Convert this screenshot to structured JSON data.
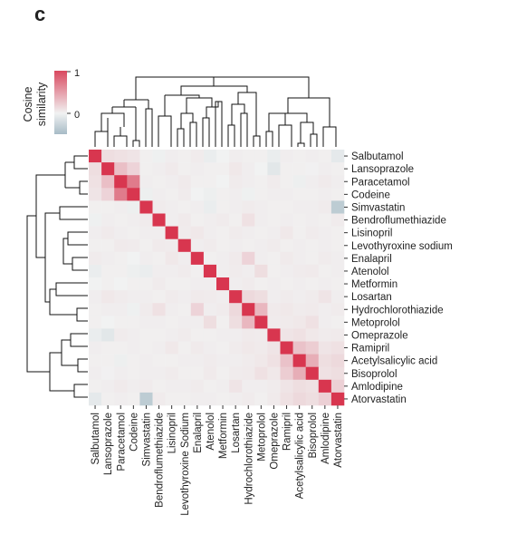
{
  "panel_label": "c",
  "colors": {
    "high": "#d9485f",
    "zero": "#f1f2f2",
    "low": "#a7bbc6",
    "diagonal": "#d8364f"
  },
  "chart_data": {
    "type": "heatmap",
    "title": "",
    "colorbar": {
      "label_line1": "Cosine",
      "label_line2": "similarity",
      "max_label": "1",
      "zero_label": "0",
      "range": [
        -0.5,
        1
      ]
    },
    "row_dendrogram": true,
    "col_dendrogram": true,
    "labels": [
      "Salbutamol",
      "Lansoprazole",
      "Paracetamol",
      "Codeine",
      "Simvastatin",
      "Bendroflumethiazide",
      "Lisinopril",
      "Levothyroxine sodium",
      "Enalapril",
      "Atenolol",
      "Metformin",
      "Losartan",
      "Hydrochlorothiazide",
      "Metoprolol",
      "Omeprazole",
      "Ramipril",
      "Acetylsalicylic acid",
      "Bisoprolol",
      "Amlodipine",
      "Atorvastatin"
    ],
    "col_labels": [
      "Salbutamol",
      "Lansoprazole",
      "Paracetamol",
      "Codeine",
      "Simvastatin",
      "Bendroflumethiazide",
      "Lisinopril",
      "Levothyroxine Sodium",
      "Enalapril",
      "Atenolol",
      "Metformin",
      "Losartan",
      "Hydrochlorothiazide",
      "Metoprolol",
      "Omeprazole",
      "Ramipril",
      "Acetylsalicylic acid",
      "Bisoprolol",
      "Amlodipine",
      "Atorvastatin"
    ],
    "matrix": [
      [
        1.0,
        0.12,
        0.1,
        0.08,
        0.02,
        -0.02,
        0.03,
        0.02,
        0.04,
        -0.05,
        0.0,
        0.03,
        0.02,
        0.02,
        -0.05,
        0.03,
        0.02,
        0.03,
        0.02,
        -0.08
      ],
      [
        0.12,
        1.0,
        0.3,
        0.18,
        0.02,
        0.03,
        0.05,
        0.02,
        0.03,
        0.02,
        0.02,
        0.06,
        0.03,
        0.0,
        -0.1,
        0.02,
        0.02,
        0.01,
        0.03,
        0.02
      ],
      [
        0.1,
        0.3,
        1.0,
        0.7,
        0.03,
        0.02,
        0.03,
        0.05,
        0.02,
        0.02,
        0.0,
        0.04,
        0.03,
        0.02,
        0.04,
        0.02,
        -0.03,
        0.03,
        0.05,
        0.03
      ],
      [
        0.08,
        0.18,
        0.7,
        1.0,
        -0.03,
        0.03,
        0.02,
        0.04,
        0.0,
        -0.03,
        0.02,
        0.03,
        -0.02,
        0.02,
        0.03,
        0.03,
        0.02,
        0.02,
        0.03,
        0.02
      ],
      [
        0.02,
        0.02,
        0.03,
        -0.03,
        1.0,
        0.04,
        0.03,
        0.02,
        0.03,
        -0.05,
        0.02,
        0.03,
        0.04,
        0.03,
        0.02,
        0.02,
        0.03,
        0.03,
        0.04,
        -0.35
      ],
      [
        -0.02,
        0.03,
        0.02,
        0.03,
        0.04,
        1.0,
        0.03,
        0.05,
        0.02,
        0.03,
        0.04,
        0.02,
        0.1,
        0.03,
        0.02,
        0.03,
        0.02,
        0.03,
        0.02,
        0.04
      ],
      [
        0.03,
        0.05,
        0.03,
        0.02,
        0.03,
        0.03,
        1.0,
        0.04,
        0.06,
        0.03,
        0.02,
        0.04,
        0.03,
        0.02,
        0.03,
        0.06,
        0.02,
        0.04,
        0.03,
        0.02
      ],
      [
        0.02,
        0.02,
        0.05,
        0.04,
        0.02,
        0.05,
        0.04,
        1.0,
        0.03,
        0.04,
        0.02,
        0.03,
        0.02,
        0.03,
        0.04,
        0.02,
        0.03,
        0.02,
        0.03,
        0.02
      ],
      [
        0.04,
        0.03,
        0.02,
        0.0,
        0.03,
        0.02,
        0.06,
        0.03,
        1.0,
        0.02,
        0.03,
        0.05,
        0.18,
        0.03,
        0.02,
        0.05,
        0.03,
        0.02,
        0.04,
        0.03
      ],
      [
        -0.05,
        0.02,
        0.02,
        -0.03,
        -0.05,
        0.03,
        0.03,
        0.04,
        0.02,
        1.0,
        0.03,
        0.04,
        0.03,
        0.12,
        0.02,
        0.03,
        0.04,
        0.05,
        0.02,
        0.03
      ],
      [
        0.0,
        0.02,
        0.0,
        0.02,
        0.02,
        0.04,
        0.02,
        0.02,
        0.03,
        0.03,
        1.0,
        0.03,
        0.04,
        0.02,
        0.03,
        0.02,
        0.03,
        0.02,
        0.03,
        0.02
      ],
      [
        0.03,
        0.06,
        0.04,
        0.03,
        0.03,
        0.02,
        0.04,
        0.03,
        0.05,
        0.04,
        0.03,
        1.0,
        0.15,
        0.12,
        0.03,
        0.04,
        0.03,
        0.04,
        0.08,
        0.03
      ],
      [
        0.02,
        0.03,
        0.03,
        -0.02,
        0.04,
        0.1,
        0.03,
        0.02,
        0.18,
        0.03,
        0.04,
        0.15,
        1.0,
        0.35,
        0.05,
        0.06,
        0.04,
        0.05,
        0.03,
        0.04
      ],
      [
        0.02,
        0.0,
        0.02,
        0.02,
        0.03,
        0.03,
        0.02,
        0.03,
        0.03,
        0.12,
        0.02,
        0.12,
        0.35,
        1.0,
        0.04,
        0.05,
        0.06,
        0.1,
        0.03,
        0.02
      ],
      [
        -0.05,
        -0.1,
        0.04,
        0.03,
        0.02,
        0.02,
        0.03,
        0.04,
        0.02,
        0.02,
        0.03,
        0.03,
        0.05,
        0.04,
        1.0,
        0.08,
        0.1,
        0.06,
        0.04,
        0.05
      ],
      [
        0.03,
        0.02,
        0.02,
        0.03,
        0.02,
        0.03,
        0.06,
        0.02,
        0.05,
        0.03,
        0.02,
        0.04,
        0.06,
        0.05,
        0.08,
        1.0,
        0.28,
        0.22,
        0.08,
        0.1
      ],
      [
        0.02,
        0.02,
        -0.03,
        0.02,
        0.03,
        0.02,
        0.02,
        0.03,
        0.03,
        0.04,
        0.03,
        0.03,
        0.04,
        0.06,
        0.1,
        0.28,
        1.0,
        0.4,
        0.12,
        0.15
      ],
      [
        0.03,
        0.01,
        0.03,
        0.02,
        0.03,
        0.03,
        0.04,
        0.02,
        0.02,
        0.05,
        0.02,
        0.04,
        0.05,
        0.1,
        0.06,
        0.22,
        0.4,
        1.0,
        0.1,
        0.12
      ],
      [
        0.02,
        0.03,
        0.05,
        0.03,
        0.04,
        0.02,
        0.03,
        0.03,
        0.04,
        0.02,
        0.03,
        0.08,
        0.03,
        0.03,
        0.04,
        0.08,
        0.12,
        0.1,
        1.0,
        0.2
      ],
      [
        -0.08,
        0.02,
        0.03,
        0.02,
        -0.35,
        0.04,
        0.02,
        0.02,
        0.03,
        0.03,
        0.02,
        0.03,
        0.04,
        0.02,
        0.05,
        0.1,
        0.15,
        0.12,
        0.2,
        1.0
      ]
    ]
  }
}
